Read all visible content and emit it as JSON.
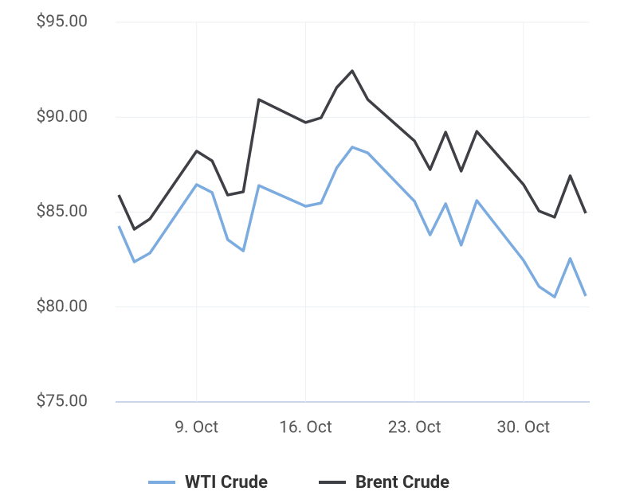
{
  "chart_data": {
    "type": "line",
    "x": [
      "4. Oct",
      "5. Oct",
      "6. Oct",
      "9. Oct",
      "10. Oct",
      "11. Oct",
      "12. Oct",
      "13. Oct",
      "16. Oct",
      "17. Oct",
      "18. Oct",
      "19. Oct",
      "20. Oct",
      "23. Oct",
      "24. Oct",
      "25. Oct",
      "26. Oct",
      "27. Oct",
      "30. Oct",
      "31. Oct",
      "1. Nov",
      "2. Nov",
      "3. Nov"
    ],
    "series": [
      {
        "name": "WTI Crude",
        "color": "#7cacdf",
        "values": [
          84.27,
          82.38,
          82.84,
          86.45,
          86.03,
          83.55,
          82.96,
          86.4,
          85.31,
          85.48,
          87.33,
          88.42,
          88.12,
          85.57,
          83.8,
          85.44,
          83.26,
          85.61,
          82.46,
          81.08,
          80.53,
          82.55,
          80.58
        ]
      },
      {
        "name": "Brent Crude",
        "color": "#3f4045",
        "values": [
          85.9,
          84.1,
          84.64,
          88.21,
          87.7,
          85.9,
          86.07,
          90.93,
          89.72,
          89.97,
          91.56,
          92.44,
          90.93,
          88.75,
          87.24,
          89.21,
          87.16,
          89.25,
          86.45,
          85.06,
          84.73,
          86.91,
          84.94
        ]
      }
    ],
    "xlim": [
      "4. Oct",
      "3. Nov"
    ],
    "xticks": [
      "9. Oct",
      "16. Oct",
      "23. Oct",
      "30. Oct"
    ],
    "ylim": [
      75,
      95
    ],
    "yticks": [
      {
        "value": 75,
        "label": "$75.00"
      },
      {
        "value": 80,
        "label": "$80.00"
      },
      {
        "value": 85,
        "label": "$85.00"
      },
      {
        "value": 90,
        "label": "$90.00"
      },
      {
        "value": 95,
        "label": "$95.00"
      }
    ],
    "grid": true,
    "legend": "bottom"
  }
}
